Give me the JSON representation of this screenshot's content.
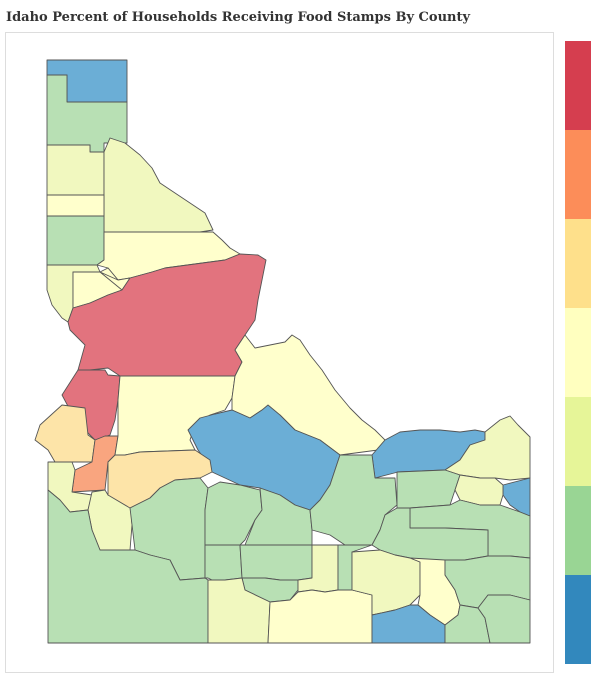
{
  "title": "Idaho Percent of Households Receiving Food Stamps By County",
  "legend": {
    "colors": [
      "#d53e4f",
      "#fc8d59",
      "#fee08b",
      "#ffffbf",
      "#e6f598",
      "#99d594",
      "#3288bd"
    ]
  },
  "counties": [
    {
      "id": "boundary",
      "color": "#6baed6",
      "level": 7
    },
    {
      "id": "bonner",
      "color": "#b8e0b4",
      "level": 6
    },
    {
      "id": "bonner-south",
      "color": "#f1f8bf",
      "level": 5
    },
    {
      "id": "shoshone",
      "color": "#f1f8bf",
      "level": 5
    },
    {
      "id": "kootenai",
      "color": "#ffffcc",
      "level": 4
    },
    {
      "id": "benewah",
      "color": "#b8e0b4",
      "level": 6
    },
    {
      "id": "clearwater",
      "color": "#ffffcc",
      "level": 4
    },
    {
      "id": "latah",
      "color": "#f1f8bf",
      "level": 5
    },
    {
      "id": "nez-perce",
      "color": "#ffffcc",
      "level": 4
    },
    {
      "id": "lewis",
      "color": "#ffffcc",
      "level": 4
    },
    {
      "id": "idaho",
      "color": "#e2737e",
      "level": 1
    },
    {
      "id": "adams",
      "color": "#e2737e",
      "level": 1
    },
    {
      "id": "washington",
      "color": "#fde4a8",
      "level": 3
    },
    {
      "id": "payette",
      "color": "#f9a57f",
      "level": 2
    },
    {
      "id": "valley",
      "color": "#ffffcc",
      "level": 4
    },
    {
      "id": "lemhi",
      "color": "#ffffcc",
      "level": 4
    },
    {
      "id": "custer",
      "color": "#6baed6",
      "level": 7
    },
    {
      "id": "clark",
      "color": "#6baed6",
      "level": 7
    },
    {
      "id": "fremont",
      "color": "#f1f8bf",
      "level": 5
    },
    {
      "id": "teton",
      "color": "#6baed6",
      "level": 7
    },
    {
      "id": "gem",
      "color": "#f1f8bf",
      "level": 5
    },
    {
      "id": "canyon",
      "color": "#f1f8bf",
      "level": 5
    },
    {
      "id": "boise",
      "color": "#fde4a8",
      "level": 3
    },
    {
      "id": "ada",
      "color": "#b8e0b4",
      "level": 6
    },
    {
      "id": "owyhee",
      "color": "#b8e0b4",
      "level": 6
    },
    {
      "id": "elmore",
      "color": "#b8e0b4",
      "level": 6
    },
    {
      "id": "camas",
      "color": "#b8e0b4",
      "level": 6
    },
    {
      "id": "blaine",
      "color": "#b8e0b4",
      "level": 6
    },
    {
      "id": "butte",
      "color": "#b8e0b4",
      "level": 6
    },
    {
      "id": "jefferson",
      "color": "#f1f8bf",
      "level": 5
    },
    {
      "id": "madison",
      "color": "#b8e0b4",
      "level": 6
    },
    {
      "id": "bonneville",
      "color": "#b8e0b4",
      "level": 6
    },
    {
      "id": "bingham",
      "color": "#b8e0b4",
      "level": 6
    },
    {
      "id": "gooding",
      "color": "#b8e0b4",
      "level": 6
    },
    {
      "id": "lincoln",
      "color": "#b8e0b4",
      "level": 6
    },
    {
      "id": "minidoka",
      "color": "#f1f8bf",
      "level": 5
    },
    {
      "id": "jerome",
      "color": "#b8e0b4",
      "level": 6
    },
    {
      "id": "twin-falls",
      "color": "#f1f8bf",
      "level": 5
    },
    {
      "id": "cassia",
      "color": "#ffffcc",
      "level": 4
    },
    {
      "id": "power",
      "color": "#f1f8bf",
      "level": 5
    },
    {
      "id": "bannock",
      "color": "#ffffcc",
      "level": 4
    },
    {
      "id": "caribou",
      "color": "#b8e0b4",
      "level": 6
    },
    {
      "id": "oneida",
      "color": "#6baed6",
      "level": 7
    },
    {
      "id": "franklin",
      "color": "#b8e0b4",
      "level": 6
    },
    {
      "id": "bear-lake",
      "color": "#b8e0b4",
      "level": 6
    },
    {
      "id": "se-corner",
      "color": "#b8e0b4",
      "level": 6
    },
    {
      "id": "owyhee-east",
      "color": "#ffffcc",
      "level": 4
    }
  ]
}
